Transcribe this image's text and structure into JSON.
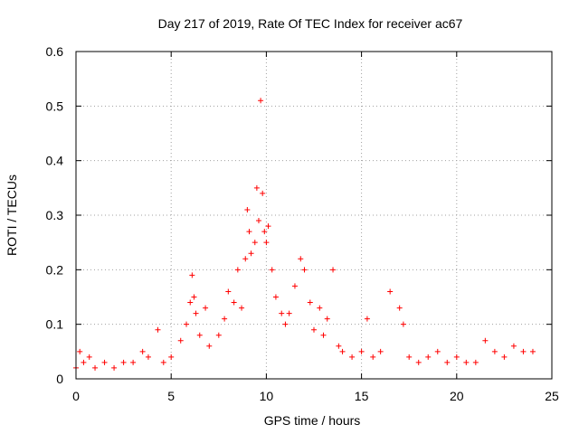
{
  "chart_data": {
    "type": "scatter",
    "title": "Day 217 of 2019, Rate Of TEC Index for receiver ac67",
    "xlabel": "GPS time / hours",
    "ylabel": "ROTI / TECUs",
    "xlim": [
      0,
      25
    ],
    "ylim": [
      0,
      0.6
    ],
    "x_ticks": [
      0,
      5,
      10,
      15,
      20,
      25
    ],
    "x_tick_labels": [
      "0",
      "5",
      "10",
      "15",
      "20",
      "25"
    ],
    "y_ticks": [
      0,
      0.1,
      0.2,
      0.3,
      0.4,
      0.5,
      0.6
    ],
    "y_tick_labels": [
      "0",
      "0.1",
      "0.2",
      "0.3",
      "0.4",
      "0.5",
      "0.6"
    ],
    "grid": true,
    "marker": "+",
    "color": "#ff0000",
    "series": [
      {
        "name": "ROTI",
        "points": [
          [
            0.0,
            0.02
          ],
          [
            0.2,
            0.05
          ],
          [
            0.4,
            0.03
          ],
          [
            0.7,
            0.04
          ],
          [
            1.0,
            0.02
          ],
          [
            1.5,
            0.03
          ],
          [
            2.0,
            0.02
          ],
          [
            2.5,
            0.03
          ],
          [
            3.0,
            0.03
          ],
          [
            3.5,
            0.05
          ],
          [
            3.8,
            0.04
          ],
          [
            4.3,
            0.09
          ],
          [
            4.6,
            0.03
          ],
          [
            5.0,
            0.04
          ],
          [
            5.5,
            0.07
          ],
          [
            5.8,
            0.1
          ],
          [
            6.0,
            0.14
          ],
          [
            6.1,
            0.19
          ],
          [
            6.2,
            0.15
          ],
          [
            6.3,
            0.12
          ],
          [
            6.5,
            0.08
          ],
          [
            6.8,
            0.13
          ],
          [
            7.0,
            0.06
          ],
          [
            7.5,
            0.08
          ],
          [
            7.8,
            0.11
          ],
          [
            8.0,
            0.16
          ],
          [
            8.3,
            0.14
          ],
          [
            8.5,
            0.2
          ],
          [
            8.7,
            0.13
          ],
          [
            8.9,
            0.22
          ],
          [
            9.0,
            0.31
          ],
          [
            9.1,
            0.27
          ],
          [
            9.2,
            0.23
          ],
          [
            9.4,
            0.25
          ],
          [
            9.5,
            0.35
          ],
          [
            9.6,
            0.29
          ],
          [
            9.7,
            0.51
          ],
          [
            9.8,
            0.34
          ],
          [
            9.9,
            0.27
          ],
          [
            10.0,
            0.25
          ],
          [
            10.1,
            0.28
          ],
          [
            10.3,
            0.2
          ],
          [
            10.5,
            0.15
          ],
          [
            10.8,
            0.12
          ],
          [
            11.0,
            0.1
          ],
          [
            11.2,
            0.12
          ],
          [
            11.5,
            0.17
          ],
          [
            11.8,
            0.22
          ],
          [
            12.0,
            0.2
          ],
          [
            12.3,
            0.14
          ],
          [
            12.5,
            0.09
          ],
          [
            12.8,
            0.13
          ],
          [
            13.0,
            0.08
          ],
          [
            13.2,
            0.11
          ],
          [
            13.5,
            0.2
          ],
          [
            13.8,
            0.06
          ],
          [
            14.0,
            0.05
          ],
          [
            14.5,
            0.04
          ],
          [
            15.0,
            0.05
          ],
          [
            15.3,
            0.11
          ],
          [
            15.6,
            0.04
          ],
          [
            16.0,
            0.05
          ],
          [
            16.5,
            0.16
          ],
          [
            17.0,
            0.13
          ],
          [
            17.2,
            0.1
          ],
          [
            17.5,
            0.04
          ],
          [
            18.0,
            0.03
          ],
          [
            18.5,
            0.04
          ],
          [
            19.0,
            0.05
          ],
          [
            19.5,
            0.03
          ],
          [
            20.0,
            0.04
          ],
          [
            20.5,
            0.03
          ],
          [
            21.0,
            0.03
          ],
          [
            21.5,
            0.07
          ],
          [
            22.0,
            0.05
          ],
          [
            22.5,
            0.04
          ],
          [
            23.0,
            0.06
          ],
          [
            23.5,
            0.05
          ],
          [
            24.0,
            0.05
          ]
        ]
      }
    ]
  }
}
